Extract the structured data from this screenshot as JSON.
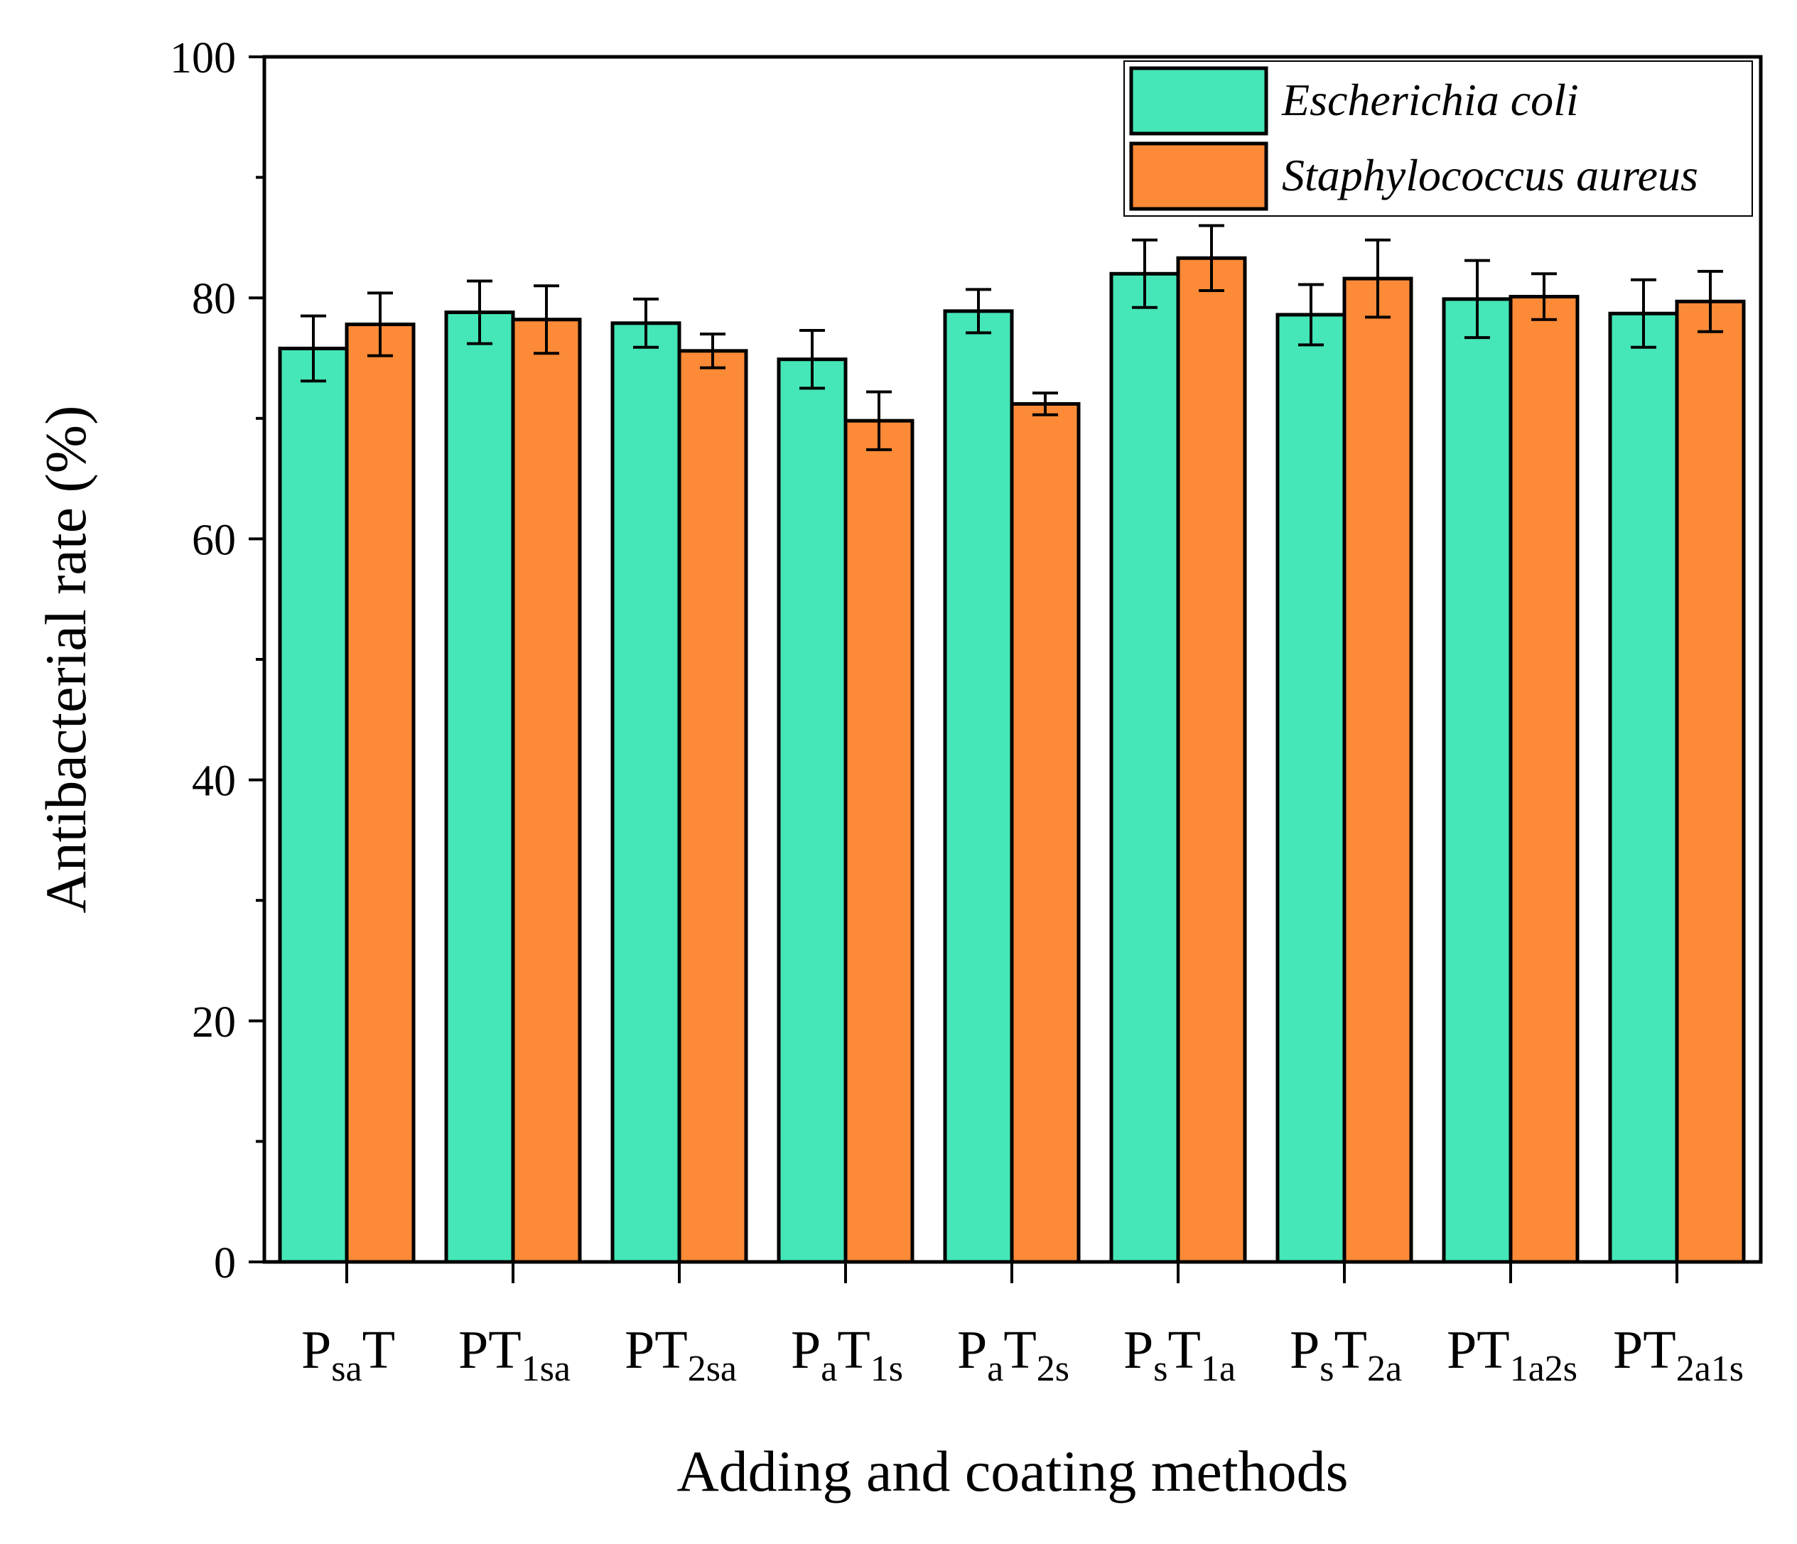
{
  "chart_data": {
    "type": "bar",
    "title": "",
    "xlabel": "Adding and coating methods",
    "ylabel": "Antibacterial rate (%)",
    "ylim": [
      0,
      100
    ],
    "yticks": [
      0,
      20,
      40,
      60,
      80,
      100
    ],
    "legend_position": "top-right",
    "categories": [
      {
        "base": "P",
        "sub": "sa",
        "tail": "T",
        "tail_sub": ""
      },
      {
        "base": "PT",
        "sub": "1sa",
        "tail": "",
        "tail_sub": ""
      },
      {
        "base": "PT",
        "sub": "2sa",
        "tail": "",
        "tail_sub": ""
      },
      {
        "base": "P",
        "sub": "a",
        "tail": "T",
        "tail_sub": "1s"
      },
      {
        "base": "P",
        "sub": "a",
        "tail": "T",
        "tail_sub": "2s"
      },
      {
        "base": "P",
        "sub": "s",
        "tail": "T",
        "tail_sub": "1a"
      },
      {
        "base": "P",
        "sub": "s",
        "tail": "T",
        "tail_sub": "2a"
      },
      {
        "base": "PT",
        "sub": "1a2s",
        "tail": "",
        "tail_sub": ""
      },
      {
        "base": "PT",
        "sub": "2a1s",
        "tail": "",
        "tail_sub": ""
      }
    ],
    "series": [
      {
        "name": "Escherichia coli",
        "color": "#45E6B7",
        "values": [
          75.8,
          78.8,
          77.9,
          74.9,
          78.9,
          82.0,
          78.6,
          79.9,
          78.7
        ],
        "errors": [
          2.7,
          2.6,
          2.0,
          2.4,
          1.8,
          2.8,
          2.5,
          3.2,
          2.8
        ]
      },
      {
        "name": "Staphylococcus aureus",
        "color": "#FC8A37",
        "values": [
          77.8,
          78.2,
          75.6,
          69.8,
          71.2,
          83.3,
          81.6,
          80.1,
          79.7
        ],
        "errors": [
          2.6,
          2.8,
          1.4,
          2.4,
          0.9,
          2.7,
          3.2,
          1.9,
          2.5
        ]
      }
    ]
  }
}
